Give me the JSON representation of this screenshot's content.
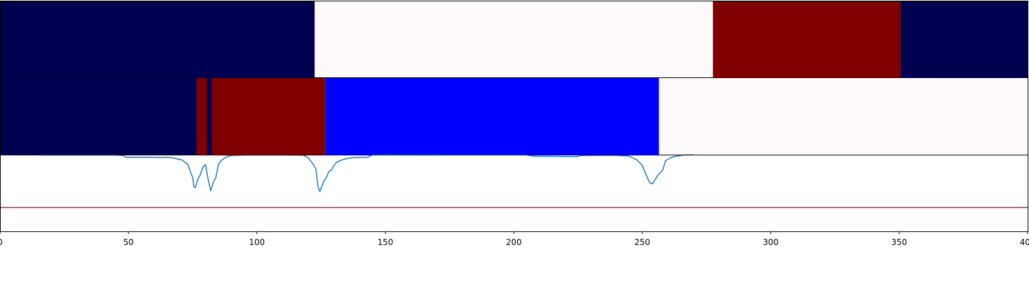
{
  "chart_data": [
    {
      "type": "segment_bar",
      "xlim": [
        0,
        400
      ],
      "segments": [
        {
          "x0": 0,
          "x1": 122.5,
          "color": "#000050"
        },
        {
          "x0": 122.5,
          "x1": 277.5,
          "color": "#fffafa"
        },
        {
          "x0": 277.5,
          "x1": 350.5,
          "color": "#800000"
        },
        {
          "x0": 350.5,
          "x1": 400,
          "color": "#000050"
        }
      ]
    },
    {
      "type": "segment_bar",
      "xlim": [
        0,
        400
      ],
      "segments": [
        {
          "x0": 0,
          "x1": 76.5,
          "color": "#000050"
        },
        {
          "x0": 76.5,
          "x1": 80.5,
          "color": "#800000"
        },
        {
          "x0": 80.5,
          "x1": 82.5,
          "color": "#000050"
        },
        {
          "x0": 82.5,
          "x1": 126.5,
          "color": "#800000"
        },
        {
          "x0": 126.5,
          "x1": 256.5,
          "color": "#0000ff"
        },
        {
          "x0": 256.5,
          "x1": 400,
          "color": "#fffafa"
        }
      ]
    },
    {
      "type": "line",
      "xlim": [
        0,
        400
      ],
      "ylim": [
        0,
        1
      ],
      "xticks": [
        0,
        50,
        100,
        150,
        200,
        250,
        300,
        350,
        400
      ],
      "threshold": {
        "y": 0.31,
        "color": "#e41a1c"
      },
      "series": [
        {
          "color": "#1f77b4",
          "points": [
            [
              16,
              0.995
            ],
            [
              30,
              0.995
            ],
            [
              45,
              0.995
            ],
            [
              48,
              0.99
            ],
            [
              49,
              0.965
            ],
            [
              55,
              0.966
            ],
            [
              60,
              0.965
            ],
            [
              63,
              0.962
            ],
            [
              65,
              0.966
            ],
            [
              67,
              0.96
            ],
            [
              69,
              0.945
            ],
            [
              71,
              0.93
            ],
            [
              72,
              0.9
            ],
            [
              73,
              0.88
            ],
            [
              74,
              0.79
            ],
            [
              75,
              0.7
            ],
            [
              75.5,
              0.58
            ],
            [
              76,
              0.57
            ],
            [
              77,
              0.68
            ],
            [
              78,
              0.74
            ],
            [
              79,
              0.84
            ],
            [
              80,
              0.87
            ],
            [
              81,
              0.68
            ],
            [
              82,
              0.53
            ],
            [
              83,
              0.64
            ],
            [
              84,
              0.7
            ],
            [
              85,
              0.87
            ],
            [
              86,
              0.92
            ],
            [
              88,
              0.97
            ],
            [
              90,
              0.99
            ],
            [
              95,
              0.995
            ],
            [
              110,
              0.995
            ],
            [
              118,
              0.993
            ],
            [
              120,
              0.96
            ],
            [
              122,
              0.87
            ],
            [
              123,
              0.81
            ],
            [
              123.8,
              0.58
            ],
            [
              124.5,
              0.52
            ],
            [
              126,
              0.65
            ],
            [
              127,
              0.7
            ],
            [
              128,
              0.78
            ],
            [
              129,
              0.8
            ],
            [
              130,
              0.86
            ],
            [
              131,
              0.9
            ],
            [
              133,
              0.93
            ],
            [
              135,
              0.95
            ],
            [
              137,
              0.96
            ],
            [
              140,
              0.965
            ],
            [
              143,
              0.965
            ],
            [
              145,
              1.0
            ],
            [
              176,
              0.998
            ],
            [
              180,
              0.998
            ],
            [
              205,
              0.998
            ],
            [
              208,
              0.98
            ],
            [
              215,
              0.978
            ],
            [
              222,
              0.975
            ],
            [
              225,
              0.976
            ],
            [
              226,
              0.99
            ],
            [
              240,
              0.992
            ],
            [
              245,
              0.98
            ],
            [
              248,
              0.93
            ],
            [
              250,
              0.86
            ],
            [
              252,
              0.7
            ],
            [
              253,
              0.63
            ],
            [
              254,
              0.62
            ],
            [
              256,
              0.73
            ],
            [
              258,
              0.8
            ],
            [
              259,
              0.92
            ],
            [
              261,
              0.96
            ],
            [
              263,
              0.98
            ],
            [
              266,
              0.995
            ],
            [
              270,
              0.998
            ]
          ]
        }
      ]
    }
  ]
}
